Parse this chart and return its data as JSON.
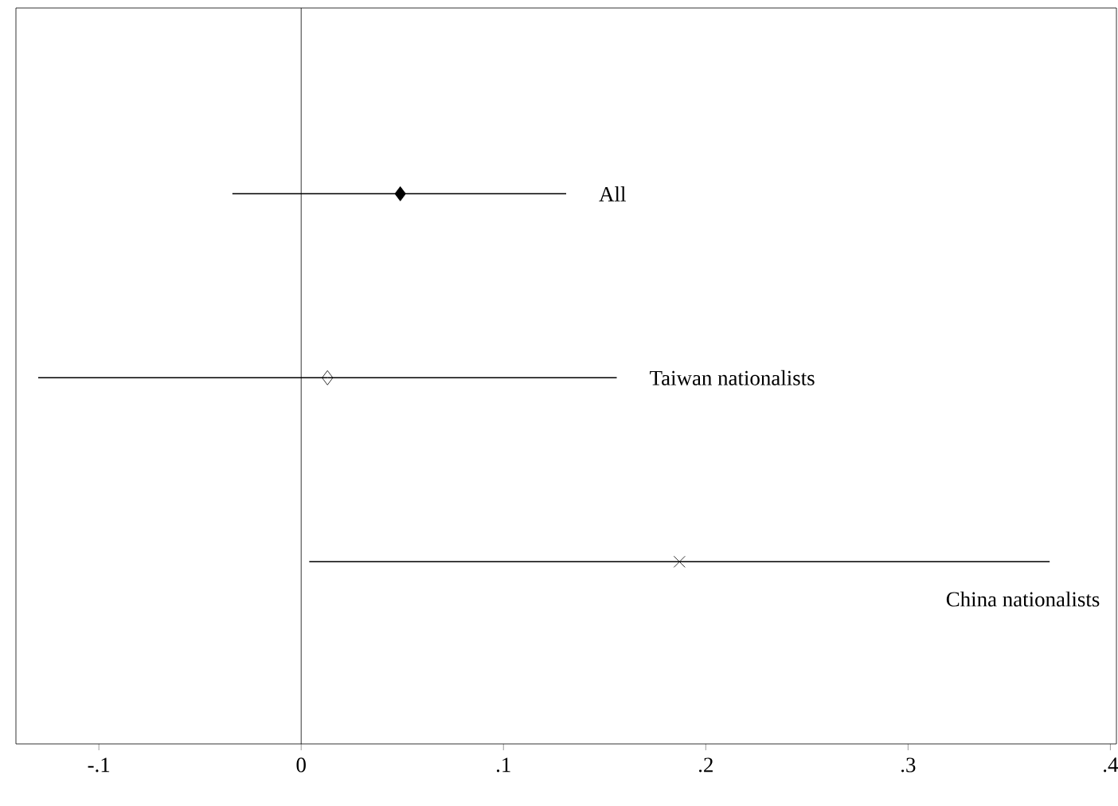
{
  "chart_data": {
    "type": "scatter",
    "orientation": "horizontal",
    "categories": [
      null,
      null,
      null
    ],
    "xlim": [
      -0.141,
      0.403
    ],
    "xticks": [
      {
        "value": -0.1,
        "label": "-.1"
      },
      {
        "value": 0,
        "label": "0"
      },
      {
        "value": 0.1,
        "label": ".1"
      },
      {
        "value": 0.2,
        "label": ".2"
      },
      {
        "value": 0.3,
        "label": ".3"
      },
      {
        "value": 0.4,
        "label": ".4"
      }
    ],
    "tick_labels": "x",
    "grid": false,
    "ref_lines": [
      {
        "axis": "x",
        "value": 0,
        "color": "#000000"
      }
    ],
    "series": [
      {
        "name": "All",
        "color": "#000000",
        "marker": "diamond",
        "values": [
          0.049,
          null,
          null
        ],
        "errors": [
          [
            -0.034,
            0.131
          ],
          null,
          null
        ]
      },
      {
        "name": "Taiwan nationalists",
        "color": "#000000",
        "marker": "diamond open",
        "values": [
          null,
          0.013,
          null
        ],
        "errors": [
          null,
          [
            -0.13,
            0.156
          ],
          null
        ]
      },
      {
        "name": "China nationalists",
        "color": "#000000",
        "marker": "cross",
        "values": [
          null,
          null,
          0.187
        ],
        "errors": [
          null,
          null,
          [
            0.004,
            0.37
          ]
        ]
      }
    ]
  }
}
